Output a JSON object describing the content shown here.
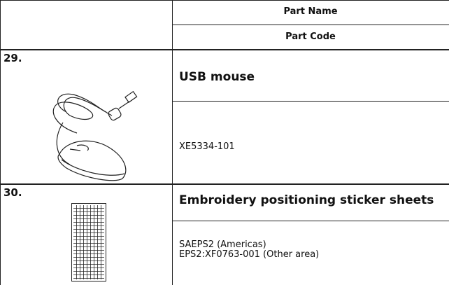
{
  "header": {
    "columns": [
      "Part Name",
      "Part Code"
    ]
  },
  "rows": [
    {
      "number": "29.",
      "name": "USB mouse",
      "code": [
        "XE5334-101"
      ]
    },
    {
      "number": "30.",
      "name": "Embroidery positioning sticker sheets",
      "code": [
        "SAEPS2 (Americas)",
        "EPS2:XF0763-001 (Other area)"
      ]
    }
  ]
}
